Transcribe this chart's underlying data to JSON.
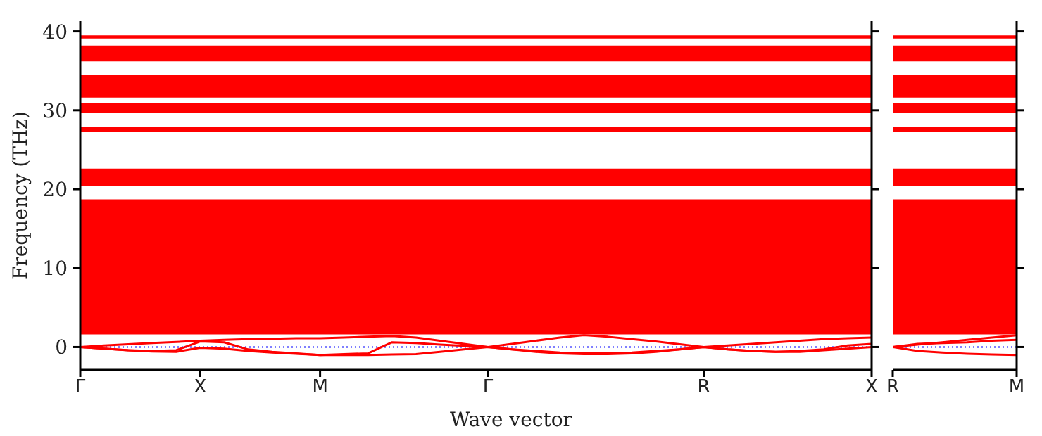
{
  "chart_data": [
    {
      "type": "line",
      "xlabel": "Wave vector",
      "ylabel": "Frequency (THz)",
      "categories": [
        "Γ",
        null,
        null,
        null,
        null,
        "X",
        null,
        null,
        null,
        null,
        "M",
        null,
        null,
        null,
        null,
        null,
        null,
        "Γ",
        null,
        null,
        null,
        null,
        null,
        null,
        null,
        null,
        "R",
        null,
        null,
        null,
        null,
        null,
        null,
        "X"
      ],
      "ylim": [
        -2.9,
        41.3
      ],
      "yticks": [
        0,
        10,
        20,
        30,
        40
      ],
      "marker": "none",
      "line_style": "solid",
      "series": [
        {
          "color": "#ff0000",
          "values": [
            0,
            0.2,
            0.35,
            0.5,
            0.65,
            0.8,
            0.9,
            1.0,
            1.05,
            1.1,
            1.1,
            1.2,
            1.3,
            1.4,
            1.2,
            0.8,
            0.4,
            0,
            0.4,
            0.8,
            1.2,
            1.5,
            1.3,
            1.0,
            0.7,
            0.35,
            0,
            0.2,
            0.4,
            0.6,
            0.8,
            1.0,
            1.1,
            1.2
          ]
        },
        {
          "color": "#ff0000",
          "values": [
            0,
            -0.2,
            -0.4,
            -0.5,
            -0.4,
            0.7,
            0.6,
            -0.3,
            -0.6,
            -0.8,
            -1.0,
            -0.9,
            -0.8,
            0.6,
            0.5,
            0.3,
            0.15,
            0,
            -0.3,
            -0.5,
            -0.7,
            -0.8,
            -0.8,
            -0.7,
            -0.5,
            -0.3,
            0,
            -0.3,
            -0.5,
            -0.6,
            -0.5,
            -0.3,
            0.2,
            0.4
          ]
        },
        {
          "color": "#ff0000",
          "values": [
            0,
            -0.2,
            -0.4,
            -0.55,
            -0.6,
            -0.1,
            -0.2,
            -0.5,
            -0.7,
            -0.85,
            -1.0,
            -1.0,
            -1.0,
            -0.95,
            -0.9,
            -0.6,
            -0.3,
            0,
            -0.3,
            -0.6,
            -0.8,
            -0.9,
            -0.9,
            -0.8,
            -0.6,
            -0.3,
            0,
            -0.3,
            -0.5,
            -0.6,
            -0.6,
            -0.4,
            -0.2,
            0
          ]
        }
      ],
      "bands": [
        {
          "axis": "y",
          "from": 39.1,
          "to": 39.5,
          "color": "#ff0000"
        },
        {
          "axis": "y",
          "from": 36.2,
          "to": 38.2,
          "color": "#ff0000"
        },
        {
          "axis": "y",
          "from": 31.6,
          "to": 34.5,
          "color": "#ff0000"
        },
        {
          "axis": "y",
          "from": 29.7,
          "to": 30.9,
          "color": "#ff0000"
        },
        {
          "axis": "y",
          "from": 27.3,
          "to": 27.9,
          "color": "#ff0000"
        },
        {
          "axis": "y",
          "from": 20.4,
          "to": 22.6,
          "color": "#ff0000"
        },
        {
          "axis": "y",
          "from": 1.6,
          "to": 18.7,
          "color": "#ff0000"
        }
      ],
      "ref_lines": [
        {
          "axis": "y",
          "value": 0,
          "color": "#0000ff",
          "line_style": "dotted"
        }
      ]
    },
    {
      "type": "line",
      "categories": [
        "R",
        null,
        null,
        null,
        null,
        "M"
      ],
      "ylim": [
        -2.9,
        41.3
      ],
      "yticks": [
        {
          "value": 0,
          "label": null
        },
        {
          "value": 10,
          "label": null
        },
        {
          "value": 20,
          "label": null
        },
        {
          "value": 30,
          "label": null
        },
        {
          "value": 40,
          "label": null
        }
      ],
      "tick_labels": "x",
      "marker": "none",
      "line_style": "solid",
      "series": [
        {
          "color": "#ff0000",
          "values": [
            0,
            0.3,
            0.6,
            0.9,
            1.2,
            1.5
          ]
        },
        {
          "color": "#ff0000",
          "values": [
            0,
            0.4,
            0.5,
            0.6,
            0.8,
            0.9
          ]
        },
        {
          "color": "#ff0000",
          "values": [
            0,
            -0.5,
            -0.7,
            -0.85,
            -0.95,
            -1.0
          ]
        }
      ],
      "bands": [
        {
          "axis": "y",
          "from": 39.1,
          "to": 39.5,
          "color": "#ff0000"
        },
        {
          "axis": "y",
          "from": 36.2,
          "to": 38.2,
          "color": "#ff0000"
        },
        {
          "axis": "y",
          "from": 31.6,
          "to": 34.5,
          "color": "#ff0000"
        },
        {
          "axis": "y",
          "from": 29.7,
          "to": 30.9,
          "color": "#ff0000"
        },
        {
          "axis": "y",
          "from": 27.3,
          "to": 27.9,
          "color": "#ff0000"
        },
        {
          "axis": "y",
          "from": 20.4,
          "to": 22.6,
          "color": "#ff0000"
        },
        {
          "axis": "y",
          "from": 1.6,
          "to": 18.7,
          "color": "#ff0000"
        }
      ],
      "ref_lines": [
        {
          "axis": "y",
          "value": 0,
          "color": "#0000ff",
          "line_style": "dotted"
        }
      ]
    }
  ]
}
